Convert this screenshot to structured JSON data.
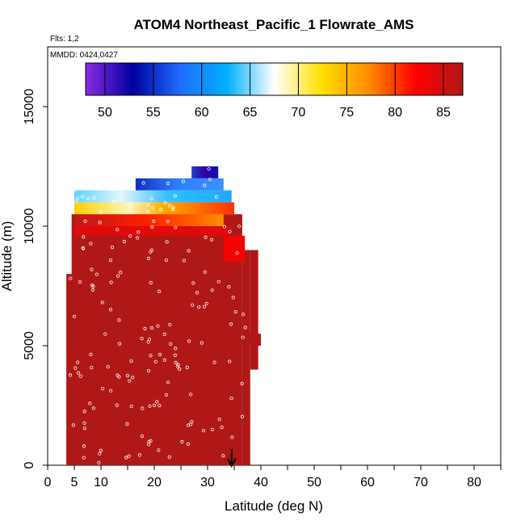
{
  "chart_data": {
    "type": "heatmap",
    "title": "ATOM4 Northeast_Pacific_1 Flowrate_AMS",
    "subtitle_flights": "Flts: 1,2",
    "subtitle_dates": "MMDD: 0424,0427",
    "xlabel": "Latitude (deg N)",
    "ylabel": "Altitude (m)",
    "xlim": [
      0,
      85
    ],
    "ylim": [
      0,
      17500
    ],
    "x_ticks": [
      0,
      5,
      10,
      20,
      30,
      40,
      50,
      60,
      70,
      80
    ],
    "x_tick_labels": [
      "0",
      "5",
      "10",
      "20",
      "30",
      "40",
      "50",
      "60",
      "70",
      "80"
    ],
    "x_minor_ticks": [
      15,
      25,
      35,
      45,
      55,
      65,
      75,
      85
    ],
    "y_ticks": [
      0,
      5000,
      10000,
      15000
    ],
    "y_tick_labels": [
      "0",
      "5000",
      "10000",
      "15000"
    ],
    "colorbar": {
      "min": 48,
      "max": 87,
      "ticks": [
        50,
        55,
        60,
        65,
        70,
        75,
        80,
        85
      ],
      "tick_labels": [
        "50",
        "55",
        "60",
        "65",
        "70",
        "75",
        "80",
        "85"
      ],
      "colors": [
        "#8a2be2",
        "#0000a0",
        "#1e6cff",
        "#00b0ff",
        "#ffffff",
        "#ffe000",
        "#ff8c00",
        "#ff0000",
        "#b01818"
      ]
    },
    "profile_layers": [
      {
        "lat_start": 3.5,
        "lat_end": 5,
        "alt_bottom": 0,
        "alt_top": 8000,
        "value": 87
      },
      {
        "lat_start": 4.5,
        "lat_end": 36.5,
        "alt_bottom": 0,
        "alt_top": 10500,
        "value": 87
      },
      {
        "lat_start": 36.5,
        "lat_end": 38,
        "alt_bottom": 0,
        "alt_top": 9000,
        "value": 87
      },
      {
        "lat_start": 38,
        "lat_end": 39.5,
        "alt_bottom": 4000,
        "alt_top": 9000,
        "value": 87
      },
      {
        "lat_start": 37,
        "lat_end": 40,
        "alt_bottom": 5000,
        "alt_top": 5500,
        "value": 87
      },
      {
        "lat_start": 5,
        "lat_end": 34,
        "alt_bottom": 9600,
        "alt_top": 10000,
        "value": 84
      },
      {
        "lat_start": 33,
        "lat_end": 37,
        "alt_bottom": 8500,
        "alt_top": 9600,
        "value": 83
      },
      {
        "lat_start": 5,
        "lat_end": 33,
        "alt_bottom": 10000,
        "alt_top": 10500,
        "value": 80
      },
      {
        "lat_start": 5,
        "lat_end": 35,
        "alt_bottom": 10500,
        "alt_top": 11000,
        "value": 76
      },
      {
        "lat_start": 5,
        "lat_end": 34.5,
        "alt_bottom": 11000,
        "alt_top": 11500,
        "value": 63
      },
      {
        "lat_start": 16.5,
        "lat_end": 33,
        "alt_bottom": 11500,
        "alt_top": 12000,
        "value": 57
      },
      {
        "lat_start": 27,
        "lat_end": 32,
        "alt_bottom": 12000,
        "alt_top": 12500,
        "value": 50
      }
    ],
    "marker_arrow_latitude": 34.5
  }
}
